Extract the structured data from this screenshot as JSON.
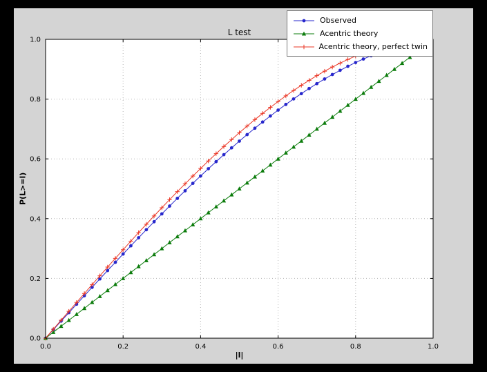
{
  "colors": {
    "window_background": "#000000",
    "figure_background": "#d4d4d4",
    "axes_background": "#ffffff",
    "grid": "#b4b4b4",
    "legend_border": "#777777"
  },
  "chart_data": {
    "type": "line",
    "title": "L test",
    "xlabel": "|l|",
    "ylabel": "P(L>=l)",
    "xlim": [
      0,
      1
    ],
    "ylim": [
      0,
      1
    ],
    "xticks": [
      0,
      0.2,
      0.4,
      0.6,
      0.8,
      1.0
    ],
    "xtick_labels": [
      "0.0",
      "0.2",
      "0.4",
      "0.6",
      "0.8",
      "1.0"
    ],
    "yticks": [
      0,
      0.2,
      0.4,
      0.6,
      0.8,
      1.0
    ],
    "ytick_labels": [
      "0.0",
      "0.2",
      "0.4",
      "0.6",
      "0.8",
      "1.0"
    ],
    "grid": true,
    "legend_position": "upper right",
    "series": [
      {
        "name": "Observed",
        "color": "#2727cc",
        "marker": "circle",
        "x": [
          0,
          0.02,
          0.04,
          0.06,
          0.08,
          0.1,
          0.12,
          0.14,
          0.16,
          0.18,
          0.2,
          0.22,
          0.24,
          0.26,
          0.28,
          0.3,
          0.32,
          0.34,
          0.36,
          0.38,
          0.4,
          0.42,
          0.44,
          0.46,
          0.48,
          0.5,
          0.52,
          0.54,
          0.56,
          0.58,
          0.6,
          0.62,
          0.64,
          0.66,
          0.68,
          0.7,
          0.72,
          0.74,
          0.76,
          0.78,
          0.8,
          0.82,
          0.84,
          0.86
        ],
        "y": [
          0,
          0.0285,
          0.057,
          0.0853,
          0.1137,
          0.1421,
          0.1702,
          0.1983,
          0.2263,
          0.254,
          0.2816,
          0.309,
          0.3361,
          0.363,
          0.3897,
          0.416,
          0.4421,
          0.4678,
          0.4932,
          0.5182,
          0.5428,
          0.567,
          0.5908,
          0.6141,
          0.637,
          0.6594,
          0.6812,
          0.7026,
          0.7234,
          0.7435,
          0.7632,
          0.7822,
          0.8006,
          0.8184,
          0.8354,
          0.8517,
          0.8674,
          0.8823,
          0.8964,
          0.9098,
          0.9224,
          0.9342,
          0.9451,
          0.9552
        ]
      },
      {
        "name": "Acentric theory",
        "color": "#0c7c0c",
        "marker": "triangle",
        "x": [
          0,
          0.02,
          0.04,
          0.06,
          0.08,
          0.1,
          0.12,
          0.14,
          0.16,
          0.18,
          0.2,
          0.22,
          0.24,
          0.26,
          0.28,
          0.3,
          0.32,
          0.34,
          0.36,
          0.38,
          0.4,
          0.42,
          0.44,
          0.46,
          0.48,
          0.5,
          0.52,
          0.54,
          0.56,
          0.58,
          0.6,
          0.62,
          0.64,
          0.66,
          0.68,
          0.7,
          0.72,
          0.74,
          0.76,
          0.78,
          0.8,
          0.82,
          0.84,
          0.86,
          0.88,
          0.9,
          0.92,
          0.94,
          0.96
        ],
        "y": [
          0,
          0.02,
          0.04,
          0.06,
          0.08,
          0.1,
          0.12,
          0.14,
          0.16,
          0.18,
          0.2,
          0.22,
          0.24,
          0.26,
          0.28,
          0.3,
          0.32,
          0.34,
          0.36,
          0.38,
          0.4,
          0.42,
          0.44,
          0.46,
          0.48,
          0.5,
          0.52,
          0.54,
          0.56,
          0.58,
          0.6,
          0.62,
          0.64,
          0.66,
          0.68,
          0.7,
          0.72,
          0.74,
          0.76,
          0.78,
          0.8,
          0.82,
          0.84,
          0.86,
          0.88,
          0.9,
          0.92,
          0.94,
          0.96
        ]
      },
      {
        "name": "Acentric theory, perfect twin",
        "color": "#ea3423",
        "marker": "plus",
        "x": [
          0,
          0.02,
          0.04,
          0.06,
          0.08,
          0.1,
          0.12,
          0.14,
          0.16,
          0.18,
          0.2,
          0.22,
          0.24,
          0.26,
          0.28,
          0.3,
          0.32,
          0.34,
          0.36,
          0.38,
          0.4,
          0.42,
          0.44,
          0.46,
          0.48,
          0.5,
          0.52,
          0.54,
          0.56,
          0.58,
          0.6,
          0.62,
          0.64,
          0.66,
          0.68,
          0.7,
          0.72,
          0.74,
          0.76,
          0.78,
          0.8,
          0.82,
          0.84
        ],
        "y": [
          0,
          0.03,
          0.06,
          0.0899,
          0.1197,
          0.1495,
          0.1791,
          0.2086,
          0.238,
          0.2671,
          0.296,
          0.3247,
          0.3531,
          0.3812,
          0.409,
          0.4365,
          0.4636,
          0.4903,
          0.5167,
          0.5426,
          0.568,
          0.593,
          0.6174,
          0.6413,
          0.6647,
          0.6875,
          0.7097,
          0.7313,
          0.7522,
          0.7724,
          0.792,
          0.8108,
          0.8289,
          0.8463,
          0.8628,
          0.8785,
          0.8934,
          0.9074,
          0.9205,
          0.9327,
          0.944,
          0.9543,
          0.9637
        ]
      }
    ]
  }
}
